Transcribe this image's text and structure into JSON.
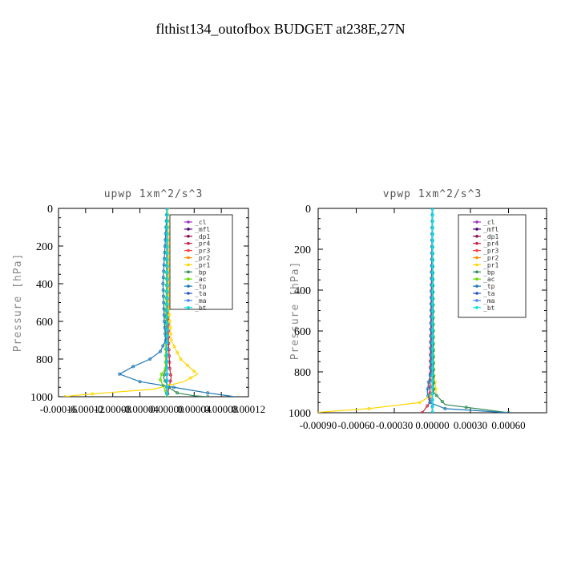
{
  "figure": {
    "title": "flthist134_outofbox  BUDGET at238E,27N"
  },
  "chart_data": [
    {
      "type": "line",
      "title": "upwp   1xm^2/s^3",
      "ylabel": "Pressure [hPa]",
      "yticks": [
        "0",
        "200",
        "400",
        "600",
        "800",
        "1000"
      ],
      "xticks": [
        "-0.00016",
        "-0.00012",
        "-0.00008",
        "-0.00004",
        "0.00000",
        "0.00004",
        "0.00008",
        "0.00012"
      ],
      "xlim": [
        -0.00016,
        0.00012
      ],
      "ylim": [
        1000,
        0
      ],
      "legend_position": "top-right",
      "series": [
        {
          "name": "_cl",
          "color": "#9b30c8",
          "pressure": [
            0,
            1000
          ],
          "values": [
            -5e-07,
            -5e-07
          ]
        },
        {
          "name": "_mfl",
          "color": "#4b0082",
          "pressure": [
            0,
            1000
          ],
          "values": [
            0.0,
            0.0
          ]
        },
        {
          "name": "_dp1",
          "color": "#8b0a50",
          "pressure": [
            0,
            1000
          ],
          "values": [
            0.0,
            0.0
          ]
        },
        {
          "name": "_pr4",
          "color": "#cc2244",
          "pressure": [
            0,
            500,
            700,
            850,
            900,
            950,
            1000
          ],
          "values": [
            0.0,
            1e-06,
            2e-06,
            4e-06,
            6e-06,
            3e-06,
            0.0
          ]
        },
        {
          "name": "_pr3",
          "color": "#ff4040",
          "pressure": [
            0,
            1000
          ],
          "values": [
            0.0,
            0.0
          ]
        },
        {
          "name": "_pr2",
          "color": "#ff8c00",
          "pressure": [
            0,
            1000
          ],
          "values": [
            0.0,
            0.0
          ]
        },
        {
          "name": "_pr1",
          "color": "#ffd700",
          "pressure": [
            0,
            200,
            500,
            700,
            800,
            850,
            880,
            920,
            960,
            985,
            995,
            1000
          ],
          "values": [
            1e-06,
            2e-06,
            2e-06,
            6e-06,
            2e-05,
            3.5e-05,
            4.5e-05,
            2.5e-05,
            -2e-05,
            -0.00011,
            -0.00014,
            -0.00015
          ]
        },
        {
          "name": "_bp",
          "color": "#2e8b57",
          "pressure": [
            0,
            850,
            900,
            950,
            980,
            995,
            1000
          ],
          "values": [
            0.0,
            -2e-06,
            -5e-06,
            2e-06,
            1.5e-05,
            4e-05,
            6e-05
          ]
        },
        {
          "name": "_ac",
          "color": "#66dd00",
          "pressure": [
            0,
            850,
            880,
            910,
            940,
            970,
            1000
          ],
          "values": [
            0.0,
            -2e-06,
            -8e-06,
            -1e-05,
            -6e-06,
            -2e-06,
            0.0
          ]
        },
        {
          "name": "_tp",
          "color": "#1f78b4",
          "pressure": [
            0,
            200,
            400,
            600,
            700,
            760,
            800,
            840,
            880,
            920,
            950,
            980,
            1000
          ],
          "values": [
            0.0,
            -3e-06,
            -6e-06,
            -4e-06,
            -2e-06,
            -1e-05,
            -2.5e-05,
            -5e-05,
            -7e-05,
            -4e-05,
            1e-05,
            6e-05,
            0.0001
          ]
        },
        {
          "name": "_ta",
          "color": "#2255cc",
          "pressure": [
            0,
            1000
          ],
          "values": [
            0.0,
            0.0
          ]
        },
        {
          "name": "_ma",
          "color": "#4488ff",
          "pressure": [
            0,
            1000
          ],
          "values": [
            0.0,
            0.0
          ]
        },
        {
          "name": "_bt",
          "color": "#00e5ee",
          "pressure": [
            0,
            1000
          ],
          "values": [
            0.0,
            0.0
          ]
        }
      ]
    },
    {
      "type": "line",
      "title": "vpwp   1xm^2/s^3",
      "ylabel": "Pressure [hPa]",
      "yticks": [
        "0",
        "200",
        "400",
        "600",
        "800",
        "1000"
      ],
      "xticks": [
        "-0.00090",
        "-0.00060",
        "-0.00030",
        "0.00000",
        "0.00030",
        "0.00060"
      ],
      "xlim": [
        -0.0009,
        0.0009
      ],
      "ylim": [
        1000,
        0
      ],
      "legend_position": "top-right",
      "series": [
        {
          "name": "_cl",
          "color": "#9b30c8",
          "pressure": [
            0,
            1000
          ],
          "values": [
            0.0,
            0.0
          ]
        },
        {
          "name": "_mfl",
          "color": "#4b0082",
          "pressure": [
            0,
            1000
          ],
          "values": [
            0.0,
            0.0
          ]
        },
        {
          "name": "_dp1",
          "color": "#8b0a50",
          "pressure": [
            0,
            1000
          ],
          "values": [
            0.0,
            0.0
          ]
        },
        {
          "name": "_pr4",
          "color": "#cc2244",
          "pressure": [
            0,
            950,
            1000
          ],
          "values": [
            0.0,
            -2e-05,
            -8e-05
          ]
        },
        {
          "name": "_pr3",
          "color": "#ff4040",
          "pressure": [
            0,
            1000
          ],
          "values": [
            0.0,
            0.0
          ]
        },
        {
          "name": "_pr2",
          "color": "#ff8c00",
          "pressure": [
            0,
            1000
          ],
          "values": [
            0.0,
            0.0
          ]
        },
        {
          "name": "_pr1",
          "color": "#ffd700",
          "pressure": [
            0,
            800,
            900,
            950,
            980,
            1000
          ],
          "values": [
            0.0,
            1e-05,
            3e-05,
            -0.0001,
            -0.0005,
            -0.00095
          ]
        },
        {
          "name": "_bp",
          "color": "#2e8b57",
          "pressure": [
            0,
            900,
            960,
            1000
          ],
          "values": [
            0.0,
            1e-05,
            0.0001,
            0.0006
          ]
        },
        {
          "name": "_ac",
          "color": "#66dd00",
          "pressure": [
            0,
            1000
          ],
          "values": [
            0.0,
            0.0
          ]
        },
        {
          "name": "_tp",
          "color": "#1f78b4",
          "pressure": [
            0,
            800,
            850,
            900,
            950,
            980,
            1000
          ],
          "values": [
            0.0,
            -1e-05,
            -3e-05,
            -4e-05,
            -2e-05,
            0.0001,
            0.0006
          ]
        },
        {
          "name": "_ta",
          "color": "#2255cc",
          "pressure": [
            0,
            1000
          ],
          "values": [
            0.0,
            0.0
          ]
        },
        {
          "name": "_ma",
          "color": "#4488ff",
          "pressure": [
            0,
            1000
          ],
          "values": [
            0.0,
            0.0
          ]
        },
        {
          "name": "_bt",
          "color": "#00e5ee",
          "pressure": [
            0,
            1000
          ],
          "values": [
            0.0,
            0.0
          ]
        }
      ]
    }
  ]
}
